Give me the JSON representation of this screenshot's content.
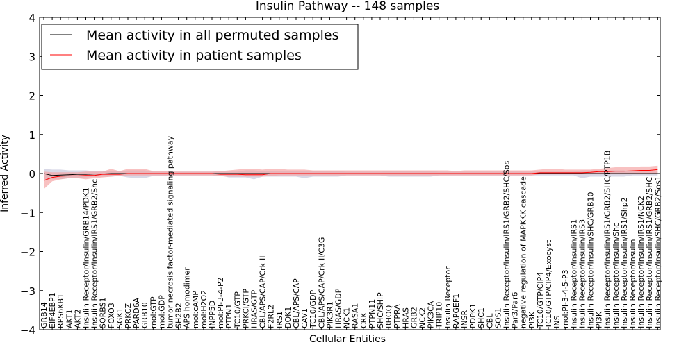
{
  "chart_data": {
    "type": "line",
    "title": "Insulin Pathway -- 148 samples",
    "xlabel": "Cellular Entities",
    "ylabel": "Inferred Activity",
    "ylim": [
      -4,
      4
    ],
    "yticks": [
      -4,
      -3,
      -2,
      -1,
      0,
      1,
      2,
      3,
      4
    ],
    "ytick_labels": [
      "−4",
      "−3",
      "−2",
      "−1",
      "0",
      "1",
      "2",
      "3",
      "4"
    ],
    "legend_position": "top-left",
    "categories": [
      "GRB14",
      "EIF4EBP1",
      "RPS6KB1",
      "AKT1",
      "AKT2",
      "Insulin Receptor/Insulin/GRB14/PDK1",
      "Insulin Receptor/Insulin/IRS1/GRB2/Shc",
      "SORBS1",
      "FOXO3",
      "SGK1",
      "PRKCZ",
      "PARD6A",
      "GRB10",
      "mol:GTP",
      "mol:GDP",
      "tumor necrosis factor-mediated signaling pathway",
      "SH2B2",
      "APS homodimer",
      "mol:cAMP",
      "mol:H2O2",
      "INPP5D",
      "mol:PI-3-4-P2",
      "PTPN1",
      "TC10/GTP",
      "PRKCI/GTP",
      "HRAS/GTP",
      "CBL/APS/CAP/Crk-II",
      "F2RL2",
      "IRS1",
      "DOK1",
      "CBL/APS/CAP",
      "CAV1",
      "TC10/GDP",
      "CBL/APS/CAP/Crk-II/C3G",
      "PIK3R1",
      "HRAS/GDP",
      "NCK1",
      "RASA1",
      "CRK",
      "PTPN11",
      "SHC/SHIP",
      "RHOQ",
      "PTPRA",
      "HRAS",
      "GRB2",
      "NCK2",
      "PIK3CA",
      "TRIP10",
      "Insulin Receptor",
      "RAPGEF1",
      "INSR",
      "PDPK1",
      "SHC1",
      "CBL",
      "SOS1",
      "Insulin Receptor/Insulin/IRS1/GRB2/SHC/Sos",
      "Par3/Par6",
      "negative regulation of MAPKKK cascade",
      "PI3K",
      "TC10/GTP/CIP4",
      "TC10/GTP/CIP4/Exocyst",
      "INS",
      "mol:PI-3-4-5-P3",
      "Insulin Receptor/Insulin/IRS1",
      "Insulin Receptor/Insulin/IRS3",
      "Insulin Receptor/Insulin/SHC/GRB10",
      "PI3K",
      "Insulin Receptor/Insulin/IRS1/GRB2/SHC/PTP1B",
      "Insulin Receptor/Insulin/Shc",
      "Insulin Receptor/Insulin/IRS1/Shp2",
      "Insulin Receptor/Insulin",
      "Insulin Receptor/Insulin/IRS1/NCK2",
      "Insulin Receptor/Insulin/IRS1/GRB2/SHC",
      "Insulin Receptor/Insulin/SHC/GRB2/Sos1"
    ],
    "series": [
      {
        "name": "Mean activity in all permuted samples",
        "color": "#000000",
        "values": [
          0,
          -0.05,
          -0.04,
          -0.03,
          -0.02,
          -0.02,
          -0.01,
          -0.01,
          0,
          0,
          0,
          0,
          0,
          0,
          0,
          0,
          0,
          0,
          0,
          0,
          0,
          0,
          0,
          0,
          0,
          0,
          0,
          0,
          0,
          0,
          0,
          0,
          0,
          0,
          0,
          0,
          0,
          0,
          0,
          0,
          0,
          0,
          0,
          0,
          0,
          0,
          0,
          0,
          0,
          0,
          0,
          0,
          0,
          0,
          0,
          0,
          0,
          0,
          0,
          0,
          0,
          0,
          0,
          0,
          0,
          0,
          0,
          0,
          0,
          0,
          0,
          0,
          0,
          0
        ],
        "band_low": [
          -0.15,
          -0.15,
          -0.15,
          -0.12,
          -0.12,
          -0.1,
          -0.08,
          -0.08,
          -0.08,
          -0.06,
          -0.1,
          -0.12,
          -0.12,
          -0.06,
          -0.06,
          -0.05,
          -0.05,
          -0.05,
          -0.05,
          -0.05,
          -0.05,
          -0.05,
          -0.1,
          -0.1,
          -0.1,
          -0.15,
          -0.08,
          -0.08,
          -0.08,
          -0.08,
          -0.08,
          -0.12,
          -0.08,
          -0.08,
          -0.08,
          -0.08,
          -0.05,
          -0.05,
          -0.05,
          -0.05,
          -0.05,
          -0.08,
          -0.08,
          -0.08,
          -0.08,
          -0.08,
          -0.08,
          -0.05,
          -0.05,
          -0.05,
          -0.05,
          -0.05,
          -0.05,
          -0.05,
          -0.05,
          -0.05,
          -0.05,
          -0.05,
          -0.05,
          -0.05,
          -0.05,
          -0.05,
          -0.05,
          -0.05,
          -0.12,
          -0.08,
          -0.08,
          -0.08,
          -0.08,
          -0.08,
          -0.05,
          -0.05,
          -0.05,
          -0.05
        ],
        "band_high": [
          0.12,
          0.1,
          0.1,
          0.08,
          0.08,
          0.08,
          0.06,
          0.06,
          0.06,
          0.06,
          0.08,
          0.08,
          0.08,
          0.05,
          0.05,
          0.05,
          0.05,
          0.05,
          0.05,
          0.05,
          0.05,
          0.05,
          0.05,
          0.05,
          0.08,
          0.08,
          0.06,
          0.06,
          0.06,
          0.06,
          0.06,
          0.06,
          0.06,
          0.06,
          0.06,
          0.06,
          0.05,
          0.05,
          0.05,
          0.05,
          0.05,
          0.06,
          0.06,
          0.06,
          0.06,
          0.06,
          0.06,
          0.05,
          0.05,
          0.05,
          0.05,
          0.05,
          0.05,
          0.05,
          0.05,
          0.05,
          0.05,
          0.05,
          0.05,
          0.05,
          0.05,
          0.05,
          0.05,
          0.05,
          0.08,
          0.08,
          0.08,
          0.08,
          0.08,
          0.08,
          0.05,
          0.05,
          0.05,
          0.05
        ]
      },
      {
        "name": "Mean activity in patient samples",
        "color": "#ff0000",
        "values": [
          -0.18,
          -0.1,
          -0.07,
          -0.06,
          -0.06,
          -0.05,
          -0.05,
          -0.02,
          -0.02,
          -0.02,
          0,
          0,
          0,
          0,
          0,
          0,
          0,
          0,
          0,
          0,
          0,
          -0.02,
          -0.02,
          -0.02,
          -0.03,
          -0.03,
          -0.03,
          0,
          0,
          0,
          0,
          0,
          0,
          0,
          0,
          0,
          0,
          0,
          0,
          0,
          0,
          0,
          0,
          0,
          0,
          0,
          0,
          0,
          0,
          0,
          0,
          0,
          0,
          0,
          0,
          0,
          0,
          0,
          0,
          0.02,
          0.02,
          0.02,
          0.02,
          0.02,
          0.02,
          0.03,
          0.05,
          0.05,
          0.06,
          0.06,
          0.07,
          0.08,
          0.08,
          0.1
        ],
        "band_low": [
          -0.4,
          -0.2,
          -0.15,
          -0.12,
          -0.12,
          -0.15,
          -0.12,
          -0.1,
          -0.08,
          -0.06,
          -0.05,
          -0.05,
          -0.05,
          -0.05,
          -0.05,
          -0.05,
          -0.05,
          -0.05,
          -0.05,
          -0.05,
          -0.05,
          -0.07,
          -0.08,
          -0.08,
          -0.08,
          -0.08,
          -0.08,
          -0.06,
          -0.05,
          -0.05,
          -0.05,
          -0.05,
          -0.05,
          -0.05,
          -0.05,
          -0.05,
          -0.05,
          -0.05,
          -0.05,
          -0.05,
          -0.05,
          -0.05,
          -0.05,
          -0.05,
          -0.05,
          -0.05,
          -0.05,
          -0.05,
          -0.05,
          -0.05,
          -0.05,
          -0.05,
          -0.05,
          -0.05,
          -0.05,
          -0.05,
          -0.05,
          -0.05,
          -0.05,
          -0.02,
          -0.02,
          -0.02,
          -0.02,
          -0.02,
          -0.02,
          -0.02,
          -0.02,
          -0.02,
          -0.02,
          -0.02,
          -0.02,
          -0.02,
          -0.02,
          0.0
        ],
        "band_high": [
          0.05,
          0.03,
          0.03,
          0.03,
          0.03,
          0.05,
          0.05,
          0.05,
          0.12,
          0.06,
          0.12,
          0.12,
          0.12,
          0.06,
          0.06,
          0.05,
          0.05,
          0.05,
          0.05,
          0.05,
          0.05,
          0.06,
          0.08,
          0.1,
          0.12,
          0.12,
          0.1,
          0.12,
          0.12,
          0.1,
          0.1,
          0.1,
          0.08,
          0.08,
          0.08,
          0.08,
          0.08,
          0.08,
          0.08,
          0.08,
          0.08,
          0.08,
          0.08,
          0.08,
          0.08,
          0.08,
          0.08,
          0.08,
          0.08,
          0.06,
          0.08,
          0.08,
          0.08,
          0.08,
          0.08,
          0.08,
          0.08,
          0.08,
          0.08,
          0.1,
          0.12,
          0.12,
          0.1,
          0.1,
          0.1,
          0.1,
          0.12,
          0.14,
          0.16,
          0.16,
          0.16,
          0.18,
          0.18,
          0.2
        ]
      }
    ]
  },
  "colors": {
    "permuted_band": "#c8c8dc",
    "patient_band": "#f4a0a0",
    "frame": "#000000"
  }
}
